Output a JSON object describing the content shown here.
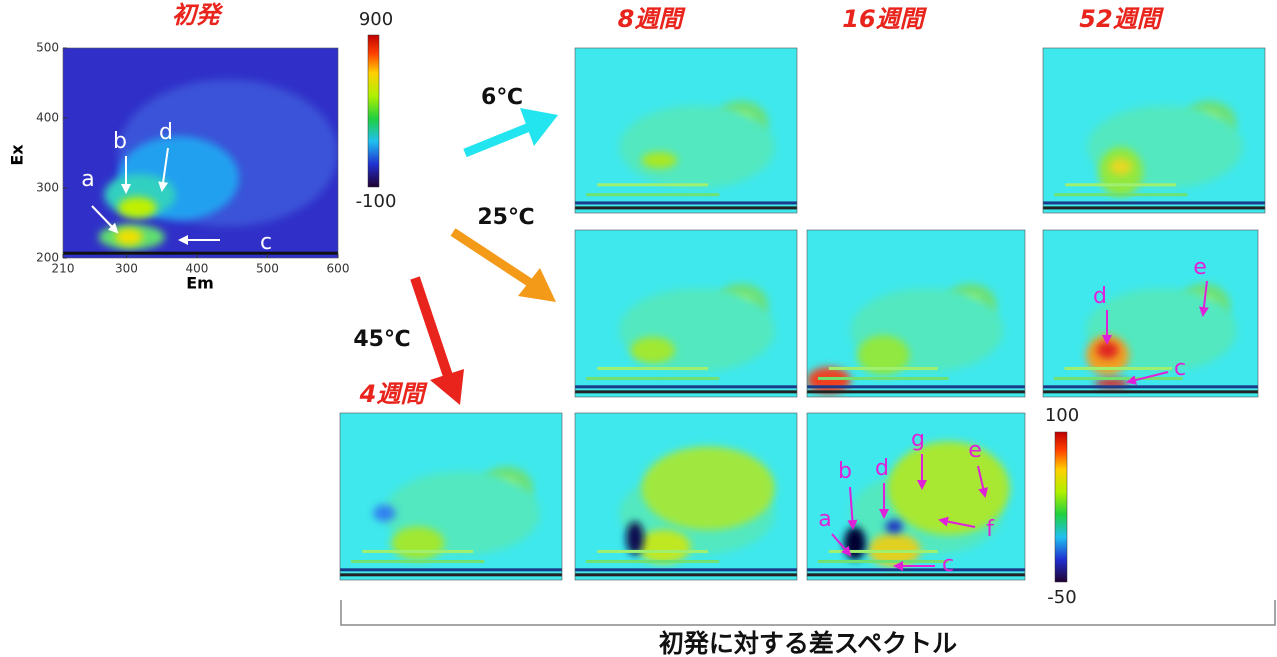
{
  "main_panel": {
    "title": "初発",
    "x_label": "Em",
    "y_label": "Ex",
    "xlim": [
      210,
      600
    ],
    "ylim": [
      200,
      500
    ],
    "xticks": [
      210,
      300,
      400,
      500,
      600
    ],
    "yticks": [
      200,
      300,
      400,
      500
    ],
    "peak_labels": [
      "a",
      "b",
      "c",
      "d"
    ]
  },
  "colorbar_main": {
    "ticks": [
      900,
      -100
    ]
  },
  "columns": [
    "8週間",
    "16週間",
    "52週間"
  ],
  "temperatures": [
    "6℃",
    "25℃",
    "45℃"
  ],
  "row_label": "4週間",
  "colorbar_diff": {
    "ticks": [
      100,
      -50
    ]
  },
  "panel_52w_25c_labels": [
    "d",
    "e",
    "c"
  ],
  "panel_16w_45c_labels": [
    "a",
    "b",
    "d",
    "g",
    "e",
    "f",
    "c"
  ],
  "caption": "初発に対する差スペクトル"
}
